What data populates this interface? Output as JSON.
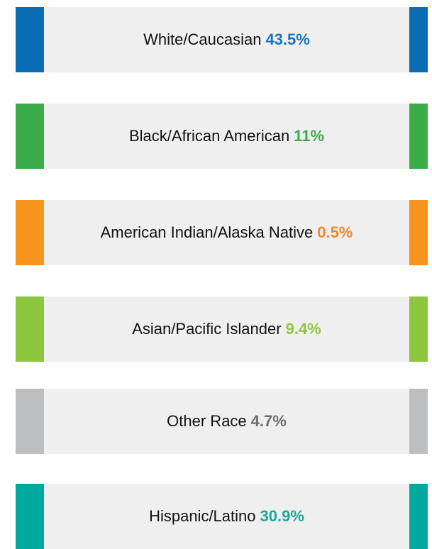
{
  "items": [
    {
      "label": "White/Caucasian",
      "value": "43.5%",
      "bar_color": "#0a6eb4",
      "value_color": "#1a75bb"
    },
    {
      "label": "Black/African American",
      "value": "11%",
      "bar_color": "#3cac4a",
      "value_color": "#3cac4a"
    },
    {
      "label": "American Indian/Alaska Native",
      "value": "0.5%",
      "bar_color": "#f7941d",
      "value_color": "#f08a2a"
    },
    {
      "label": "Asian/Pacific Islander",
      "value": "9.4%",
      "bar_color": "#8dc63f",
      "value_color": "#8dc63f"
    },
    {
      "label": "Other Race",
      "value": "4.7%",
      "bar_color": "#bcbec0",
      "value_color": "#6d6e71"
    },
    {
      "label": "Hispanic/Latino",
      "value": "30.9%",
      "bar_color": "#00a99d",
      "value_color": "#1aa89a"
    }
  ]
}
